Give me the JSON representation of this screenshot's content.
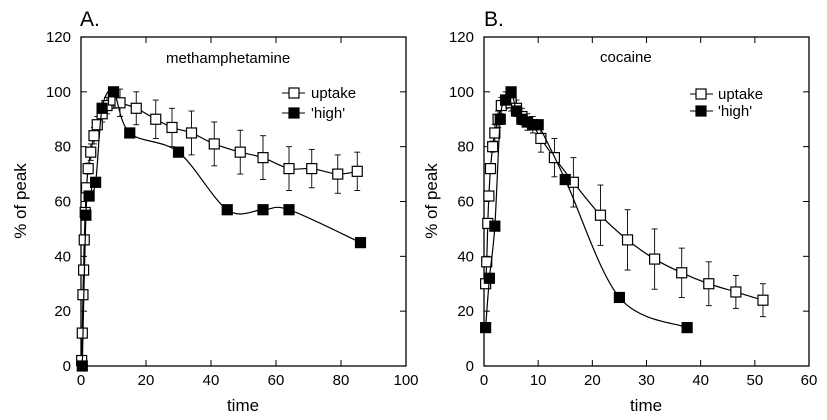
{
  "chart_data": [
    {
      "type": "line",
      "panel_label": "A.",
      "annotation": "methamphetamine",
      "xlabel": "time",
      "ylabel": "% of peak",
      "xlim": [
        0,
        100
      ],
      "ylim": [
        0,
        120
      ],
      "xticks": [
        0,
        20,
        40,
        60,
        80,
        100
      ],
      "yticks": [
        0,
        20,
        40,
        60,
        80,
        100,
        120
      ],
      "legend_position": "top-right",
      "series": [
        {
          "name": "uptake",
          "marker": "open-square",
          "points": [
            {
              "x": 0.2,
              "y": 2,
              "err": 0
            },
            {
              "x": 0.4,
              "y": 12,
              "err": 0
            },
            {
              "x": 0.6,
              "y": 26,
              "err": 0
            },
            {
              "x": 0.8,
              "y": 35,
              "err": 0
            },
            {
              "x": 1.0,
              "y": 46,
              "err": 0
            },
            {
              "x": 1.3,
              "y": 56,
              "err": 0
            },
            {
              "x": 1.7,
              "y": 65,
              "err": 0
            },
            {
              "x": 2.2,
              "y": 72,
              "err": 2
            },
            {
              "x": 3.0,
              "y": 78,
              "err": 3
            },
            {
              "x": 4.0,
              "y": 84,
              "err": 3
            },
            {
              "x": 5.0,
              "y": 88,
              "err": 3
            },
            {
              "x": 6.5,
              "y": 92,
              "err": 3
            },
            {
              "x": 8.0,
              "y": 95,
              "err": 3
            },
            {
              "x": 10.0,
              "y": 97,
              "err": 3
            },
            {
              "x": 12.0,
              "y": 96,
              "err": 5
            },
            {
              "x": 17.0,
              "y": 94,
              "err": 6
            },
            {
              "x": 23.0,
              "y": 90,
              "err": 7
            },
            {
              "x": 28.0,
              "y": 87,
              "err": 7
            },
            {
              "x": 34.0,
              "y": 85,
              "err": 8
            },
            {
              "x": 41.0,
              "y": 81,
              "err": 8
            },
            {
              "x": 49.0,
              "y": 78,
              "err": 8
            },
            {
              "x": 56.0,
              "y": 76,
              "err": 8
            },
            {
              "x": 64.0,
              "y": 72,
              "err": 8
            },
            {
              "x": 71.0,
              "y": 72,
              "err": 7
            },
            {
              "x": 79.0,
              "y": 70,
              "err": 7
            },
            {
              "x": 85.0,
              "y": 71,
              "err": 7
            }
          ]
        },
        {
          "name": "'high'",
          "marker": "filled-square",
          "points": [
            {
              "x": 0.4,
              "y": 0
            },
            {
              "x": 1.5,
              "y": 55
            },
            {
              "x": 2.5,
              "y": 62
            },
            {
              "x": 4.5,
              "y": 67
            },
            {
              "x": 6.5,
              "y": 94
            },
            {
              "x": 10.0,
              "y": 100
            },
            {
              "x": 15.0,
              "y": 85
            },
            {
              "x": 30.0,
              "y": 78
            },
            {
              "x": 45.0,
              "y": 57
            },
            {
              "x": 56.0,
              "y": 57
            },
            {
              "x": 64.0,
              "y": 57
            },
            {
              "x": 86.0,
              "y": 45
            }
          ]
        }
      ]
    },
    {
      "type": "line",
      "panel_label": "B.",
      "annotation": "cocaine",
      "xlabel": "time",
      "ylabel": "% of peak",
      "xlim": [
        0,
        60
      ],
      "ylim": [
        0,
        120
      ],
      "xticks": [
        0,
        10,
        20,
        30,
        40,
        50,
        60
      ],
      "yticks": [
        0,
        20,
        40,
        60,
        80,
        100,
        120
      ],
      "legend_position": "top-right",
      "series": [
        {
          "name": "uptake",
          "marker": "open-square",
          "points": [
            {
              "x": 0.3,
              "y": 30,
              "err": 0
            },
            {
              "x": 0.5,
              "y": 38,
              "err": 0
            },
            {
              "x": 0.7,
              "y": 52,
              "err": 0
            },
            {
              "x": 0.9,
              "y": 62,
              "err": 0
            },
            {
              "x": 1.2,
              "y": 72,
              "err": 0
            },
            {
              "x": 1.6,
              "y": 80,
              "err": 2
            },
            {
              "x": 2.0,
              "y": 85,
              "err": 3
            },
            {
              "x": 2.6,
              "y": 90,
              "err": 3
            },
            {
              "x": 3.2,
              "y": 95,
              "err": 3
            },
            {
              "x": 4.0,
              "y": 97,
              "err": 3
            },
            {
              "x": 5.0,
              "y": 96,
              "err": 3
            },
            {
              "x": 6.0,
              "y": 94,
              "err": 3
            },
            {
              "x": 7.0,
              "y": 91,
              "err": 3
            },
            {
              "x": 8.0,
              "y": 89,
              "err": 3
            },
            {
              "x": 9.0,
              "y": 88,
              "err": 3
            },
            {
              "x": 10.5,
              "y": 83,
              "err": 5
            },
            {
              "x": 13.0,
              "y": 76,
              "err": 7
            },
            {
              "x": 16.5,
              "y": 67,
              "err": 9
            },
            {
              "x": 21.5,
              "y": 55,
              "err": 11
            },
            {
              "x": 26.5,
              "y": 46,
              "err": 11
            },
            {
              "x": 31.5,
              "y": 39,
              "err": 11
            },
            {
              "x": 36.5,
              "y": 34,
              "err": 9
            },
            {
              "x": 41.5,
              "y": 30,
              "err": 8
            },
            {
              "x": 46.5,
              "y": 27,
              "err": 6
            },
            {
              "x": 51.5,
              "y": 24,
              "err": 6
            }
          ]
        },
        {
          "name": "'high'",
          "marker": "filled-square",
          "points": [
            {
              "x": 0.3,
              "y": 14
            },
            {
              "x": 1.0,
              "y": 32
            },
            {
              "x": 2.0,
              "y": 51
            },
            {
              "x": 3.0,
              "y": 90
            },
            {
              "x": 4.0,
              "y": 97
            },
            {
              "x": 5.0,
              "y": 100
            },
            {
              "x": 6.0,
              "y": 93
            },
            {
              "x": 7.0,
              "y": 90
            },
            {
              "x": 8.0,
              "y": 89
            },
            {
              "x": 9.0,
              "y": 88
            },
            {
              "x": 10.0,
              "y": 88
            },
            {
              "x": 15.0,
              "y": 68
            },
            {
              "x": 25.0,
              "y": 25
            },
            {
              "x": 37.5,
              "y": 14
            }
          ]
        }
      ]
    }
  ]
}
